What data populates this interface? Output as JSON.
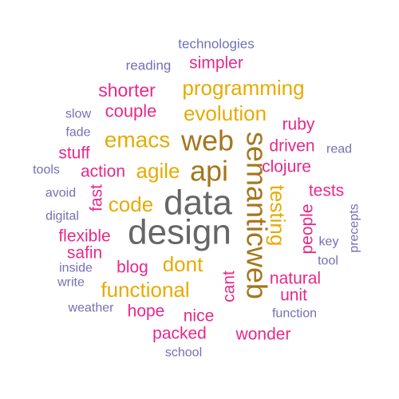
{
  "colors": {
    "background": "#ffffff",
    "pink": "#e7298a",
    "gold": "#e6ab02",
    "olive": "#a6761d",
    "gray": "#666666",
    "purple": "#7570b3"
  },
  "words": [
    {
      "text": "technologies",
      "color": "purple",
      "weight": 1
    },
    {
      "text": "reading",
      "color": "purple",
      "weight": 1
    },
    {
      "text": "simpler",
      "color": "pink",
      "weight": 3
    },
    {
      "text": "shorter",
      "color": "pink",
      "weight": 3
    },
    {
      "text": "programming",
      "color": "gold",
      "weight": 4
    },
    {
      "text": "slow",
      "color": "purple",
      "weight": 1
    },
    {
      "text": "couple",
      "color": "pink",
      "weight": 3
    },
    {
      "text": "evolution",
      "color": "gold",
      "weight": 4
    },
    {
      "text": "fade",
      "color": "purple",
      "weight": 1
    },
    {
      "text": "emacs",
      "color": "gold",
      "weight": 4
    },
    {
      "text": "web",
      "color": "olive",
      "weight": 6
    },
    {
      "text": "ruby",
      "color": "pink",
      "weight": 3
    },
    {
      "text": "stuff",
      "color": "pink",
      "weight": 3
    },
    {
      "text": "driven",
      "color": "pink",
      "weight": 3
    },
    {
      "text": "read",
      "color": "purple",
      "weight": 1
    },
    {
      "text": "tools",
      "color": "purple",
      "weight": 1
    },
    {
      "text": "action",
      "color": "pink",
      "weight": 3
    },
    {
      "text": "agile",
      "color": "gold",
      "weight": 4
    },
    {
      "text": "api",
      "color": "olive",
      "weight": 6
    },
    {
      "text": "clojure",
      "color": "pink",
      "weight": 3
    },
    {
      "text": "semanticweb",
      "color": "olive",
      "weight": 6
    },
    {
      "text": "avoid",
      "color": "purple",
      "weight": 1
    },
    {
      "text": "fast",
      "color": "pink",
      "weight": 3
    },
    {
      "text": "code",
      "color": "gold",
      "weight": 4
    },
    {
      "text": "data",
      "color": "gray",
      "weight": 7
    },
    {
      "text": "testing",
      "color": "gold",
      "weight": 4
    },
    {
      "text": "tests",
      "color": "pink",
      "weight": 3
    },
    {
      "text": "digital",
      "color": "purple",
      "weight": 1
    },
    {
      "text": "design",
      "color": "gray",
      "weight": 7
    },
    {
      "text": "people",
      "color": "pink",
      "weight": 3
    },
    {
      "text": "precepts",
      "color": "purple",
      "weight": 1
    },
    {
      "text": "flexible",
      "color": "pink",
      "weight": 3
    },
    {
      "text": "key",
      "color": "purple",
      "weight": 1
    },
    {
      "text": "safin",
      "color": "pink",
      "weight": 3
    },
    {
      "text": "tool",
      "color": "purple",
      "weight": 1
    },
    {
      "text": "inside",
      "color": "purple",
      "weight": 1
    },
    {
      "text": "blog",
      "color": "pink",
      "weight": 3
    },
    {
      "text": "dont",
      "color": "gold",
      "weight": 4
    },
    {
      "text": "cant",
      "color": "pink",
      "weight": 3
    },
    {
      "text": "natural",
      "color": "pink",
      "weight": 3
    },
    {
      "text": "write",
      "color": "purple",
      "weight": 1
    },
    {
      "text": "functional",
      "color": "gold",
      "weight": 4
    },
    {
      "text": "unit",
      "color": "pink",
      "weight": 3
    },
    {
      "text": "weather",
      "color": "purple",
      "weight": 1
    },
    {
      "text": "hope",
      "color": "pink",
      "weight": 3
    },
    {
      "text": "nice",
      "color": "pink",
      "weight": 3
    },
    {
      "text": "function",
      "color": "purple",
      "weight": 1
    },
    {
      "text": "packed",
      "color": "pink",
      "weight": 3
    },
    {
      "text": "wonder",
      "color": "pink",
      "weight": 3
    },
    {
      "text": "school",
      "color": "purple",
      "weight": 1
    }
  ]
}
